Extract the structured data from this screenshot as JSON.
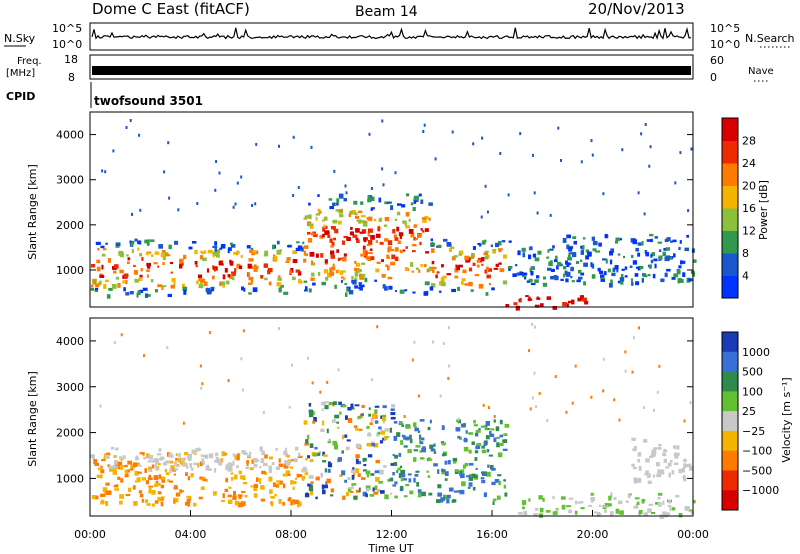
{
  "header": {
    "station": "Dome C East (fitACF)",
    "beam": "Beam 14",
    "date": "20/Nov/2013"
  },
  "noise_panel": {
    "left_label": "N.Sky",
    "left_ticks": [
      "10^5",
      "10^0"
    ],
    "right_label": "N.Search",
    "right_ticks": [
      "10^5",
      "10^0"
    ]
  },
  "freq_panel": {
    "left_label_line1": "Freq.",
    "left_label_line2": "[MHz]",
    "left_ticks": [
      "18",
      "8"
    ],
    "right_label": "Nave",
    "right_ticks": [
      "60",
      "0"
    ]
  },
  "cpid_panel": {
    "label": "CPID",
    "program": "twofsound 3501"
  },
  "chart_data": [
    {
      "type": "heatmap",
      "quantity": "Power",
      "ylabel": "Slant Range [km]",
      "yticks": [
        "1000",
        "2000",
        "3000",
        "4000"
      ],
      "ylim": [
        180,
        4500
      ],
      "xlim": [
        0,
        24
      ],
      "colorbar": {
        "label": "Power [dB]",
        "ticks": [
          "4",
          "8",
          "12",
          "16",
          "20",
          "24",
          "28"
        ],
        "range": [
          0,
          32
        ],
        "colors": [
          "#0033ff",
          "#1a56cc",
          "#2f9a4d",
          "#8cbf3a",
          "#f5b400",
          "#ff7a00",
          "#ee2a00",
          "#d60000"
        ]
      },
      "echo_regions": [
        {
          "t0": 0.0,
          "t1": 3.5,
          "r_lo": 450,
          "r_hi": 1700,
          "level": "strong"
        },
        {
          "t0": 3.5,
          "t1": 8.5,
          "r_lo": 500,
          "r_hi": 1650,
          "level": "strong"
        },
        {
          "t0": 8.5,
          "t1": 13.5,
          "r_lo": 500,
          "r_hi": 2700,
          "level": "strong"
        },
        {
          "t0": 13.5,
          "t1": 16.5,
          "r_lo": 500,
          "r_hi": 1700,
          "level": "strong"
        },
        {
          "t0": 16.5,
          "t1": 20.0,
          "r_lo": 200,
          "r_hi": 450,
          "level": "very strong"
        },
        {
          "t0": 16.5,
          "t1": 24.0,
          "r_lo": 700,
          "r_hi": 1800,
          "level": "weak"
        }
      ]
    },
    {
      "type": "heatmap",
      "quantity": "Velocity",
      "xlabel": "Time UT",
      "xticks": [
        "00:00",
        "04:00",
        "08:00",
        "12:00",
        "16:00",
        "20:00",
        "00:00"
      ],
      "ylabel": "Slant Range [km]",
      "yticks": [
        "1000",
        "2000",
        "3000",
        "4000"
      ],
      "ylim": [
        180,
        4500
      ],
      "xlim": [
        0,
        24
      ],
      "colorbar": {
        "label": "Velocity [m s⁻¹]",
        "ticks": [
          "1000",
          "500",
          "100",
          "25",
          "−25",
          "−100",
          "−500",
          "−1000"
        ],
        "colors": [
          "#1a3ab8",
          "#3a6fd8",
          "#2f8a4d",
          "#5fc030",
          "#c8c8c8",
          "#f5b400",
          "#ff7a00",
          "#ee2a00",
          "#d60000"
        ]
      },
      "echo_regions": [
        {
          "t0": 0.0,
          "t1": 8.5,
          "r_lo": 450,
          "r_hi": 1600,
          "velocity": "negative (-100 to -500)"
        },
        {
          "t0": 0.0,
          "t1": 8.5,
          "r_lo": 1200,
          "r_hi": 1700,
          "velocity": "near zero (-25 to 25)"
        },
        {
          "t0": 8.5,
          "t1": 12.0,
          "r_lo": 600,
          "r_hi": 2700,
          "velocity": "mixed"
        },
        {
          "t0": 12.0,
          "t1": 16.5,
          "r_lo": 500,
          "r_hi": 2300,
          "velocity": "positive (100 to 500)"
        },
        {
          "t0": 17.0,
          "t1": 24.0,
          "r_lo": 200,
          "r_hi": 700,
          "velocity": "near zero / positive"
        },
        {
          "t0": 21.5,
          "t1": 24.0,
          "r_lo": 900,
          "r_hi": 1900,
          "velocity": "near zero (-25 to 25)"
        }
      ]
    }
  ]
}
